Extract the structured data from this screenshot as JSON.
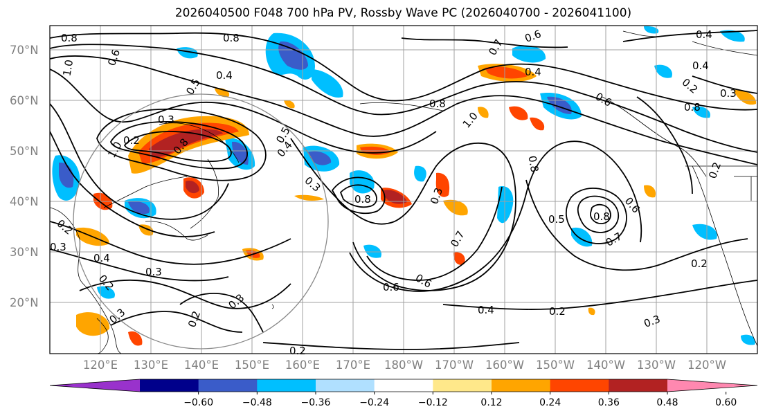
{
  "title": "2026040500 F048 700 hPa PV, Rossby Wave PC (2026040700 - 2026041100)",
  "lat_ticks": [
    "70°N",
    "60°N",
    "50°N",
    "40°N",
    "30°N",
    "20°N"
  ],
  "lon_ticks": [
    "120°E",
    "130°E",
    "140°E",
    "150°E",
    "160°E",
    "170°E",
    "180°W",
    "170°W",
    "160°W",
    "150°W",
    "140°W",
    "130°W",
    "120°W"
  ],
  "colorbar": {
    "colors": [
      "#9932cc",
      "#00008b",
      "#3a5cc9",
      "#00bfff",
      "#b0e0ff",
      "#ffffff",
      "#ffe88a",
      "#ffa500",
      "#ff4500",
      "#b22222",
      "#ff88b0"
    ],
    "labels": [
      "−0.60",
      "−0.48",
      "−0.36",
      "−0.24",
      "−0.12",
      "0.12",
      "0.24",
      "0.36",
      "0.48",
      "0.60"
    ]
  },
  "contour_labels": [
    "0.8",
    "0.8",
    "1.0",
    "0.6",
    "0.4",
    "0.5",
    "0.3",
    "0.2",
    "0.5",
    "0.8",
    "1.0",
    "0.4",
    "0.3",
    "0.2",
    "0.3",
    "0.4",
    "0.3",
    "0.2",
    "0.3",
    "0.2",
    "0.3",
    "0.8",
    "0.2",
    "0.6",
    "0.7",
    "0.6",
    "0.3",
    "0.4",
    "0.7",
    "0.6",
    "0.8",
    "0.8",
    "1.0",
    "0.4",
    "0.5",
    "0.8",
    "0.7",
    "0.6",
    "0.6",
    "0.4",
    "0.2",
    "0.2",
    "0.3",
    "0.2",
    "0.2",
    "0.3",
    "0.8",
    "0.4"
  ]
}
